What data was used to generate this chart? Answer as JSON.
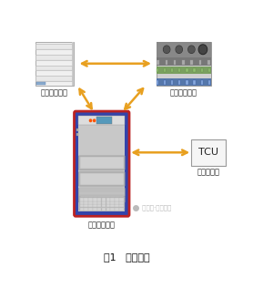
{
  "fig_width": 2.78,
  "fig_height": 3.16,
  "dpi": 100,
  "bg_color": "#ffffff",
  "arrow_color": "#E8A020",
  "arrow_lw": 1.8,
  "label_model": "被控对象模型",
  "label_software": "试险管理软件",
  "label_hardware": "仿真硬件平台",
  "label_tcu_box": "TCU",
  "label_tcu": "待测控制器",
  "label_wechat": " 公众号·齿轮传动",
  "fig_title": "图1   测试系统",
  "title_fontsize": 8,
  "label_fontsize": 6,
  "tcu_fontsize": 8
}
